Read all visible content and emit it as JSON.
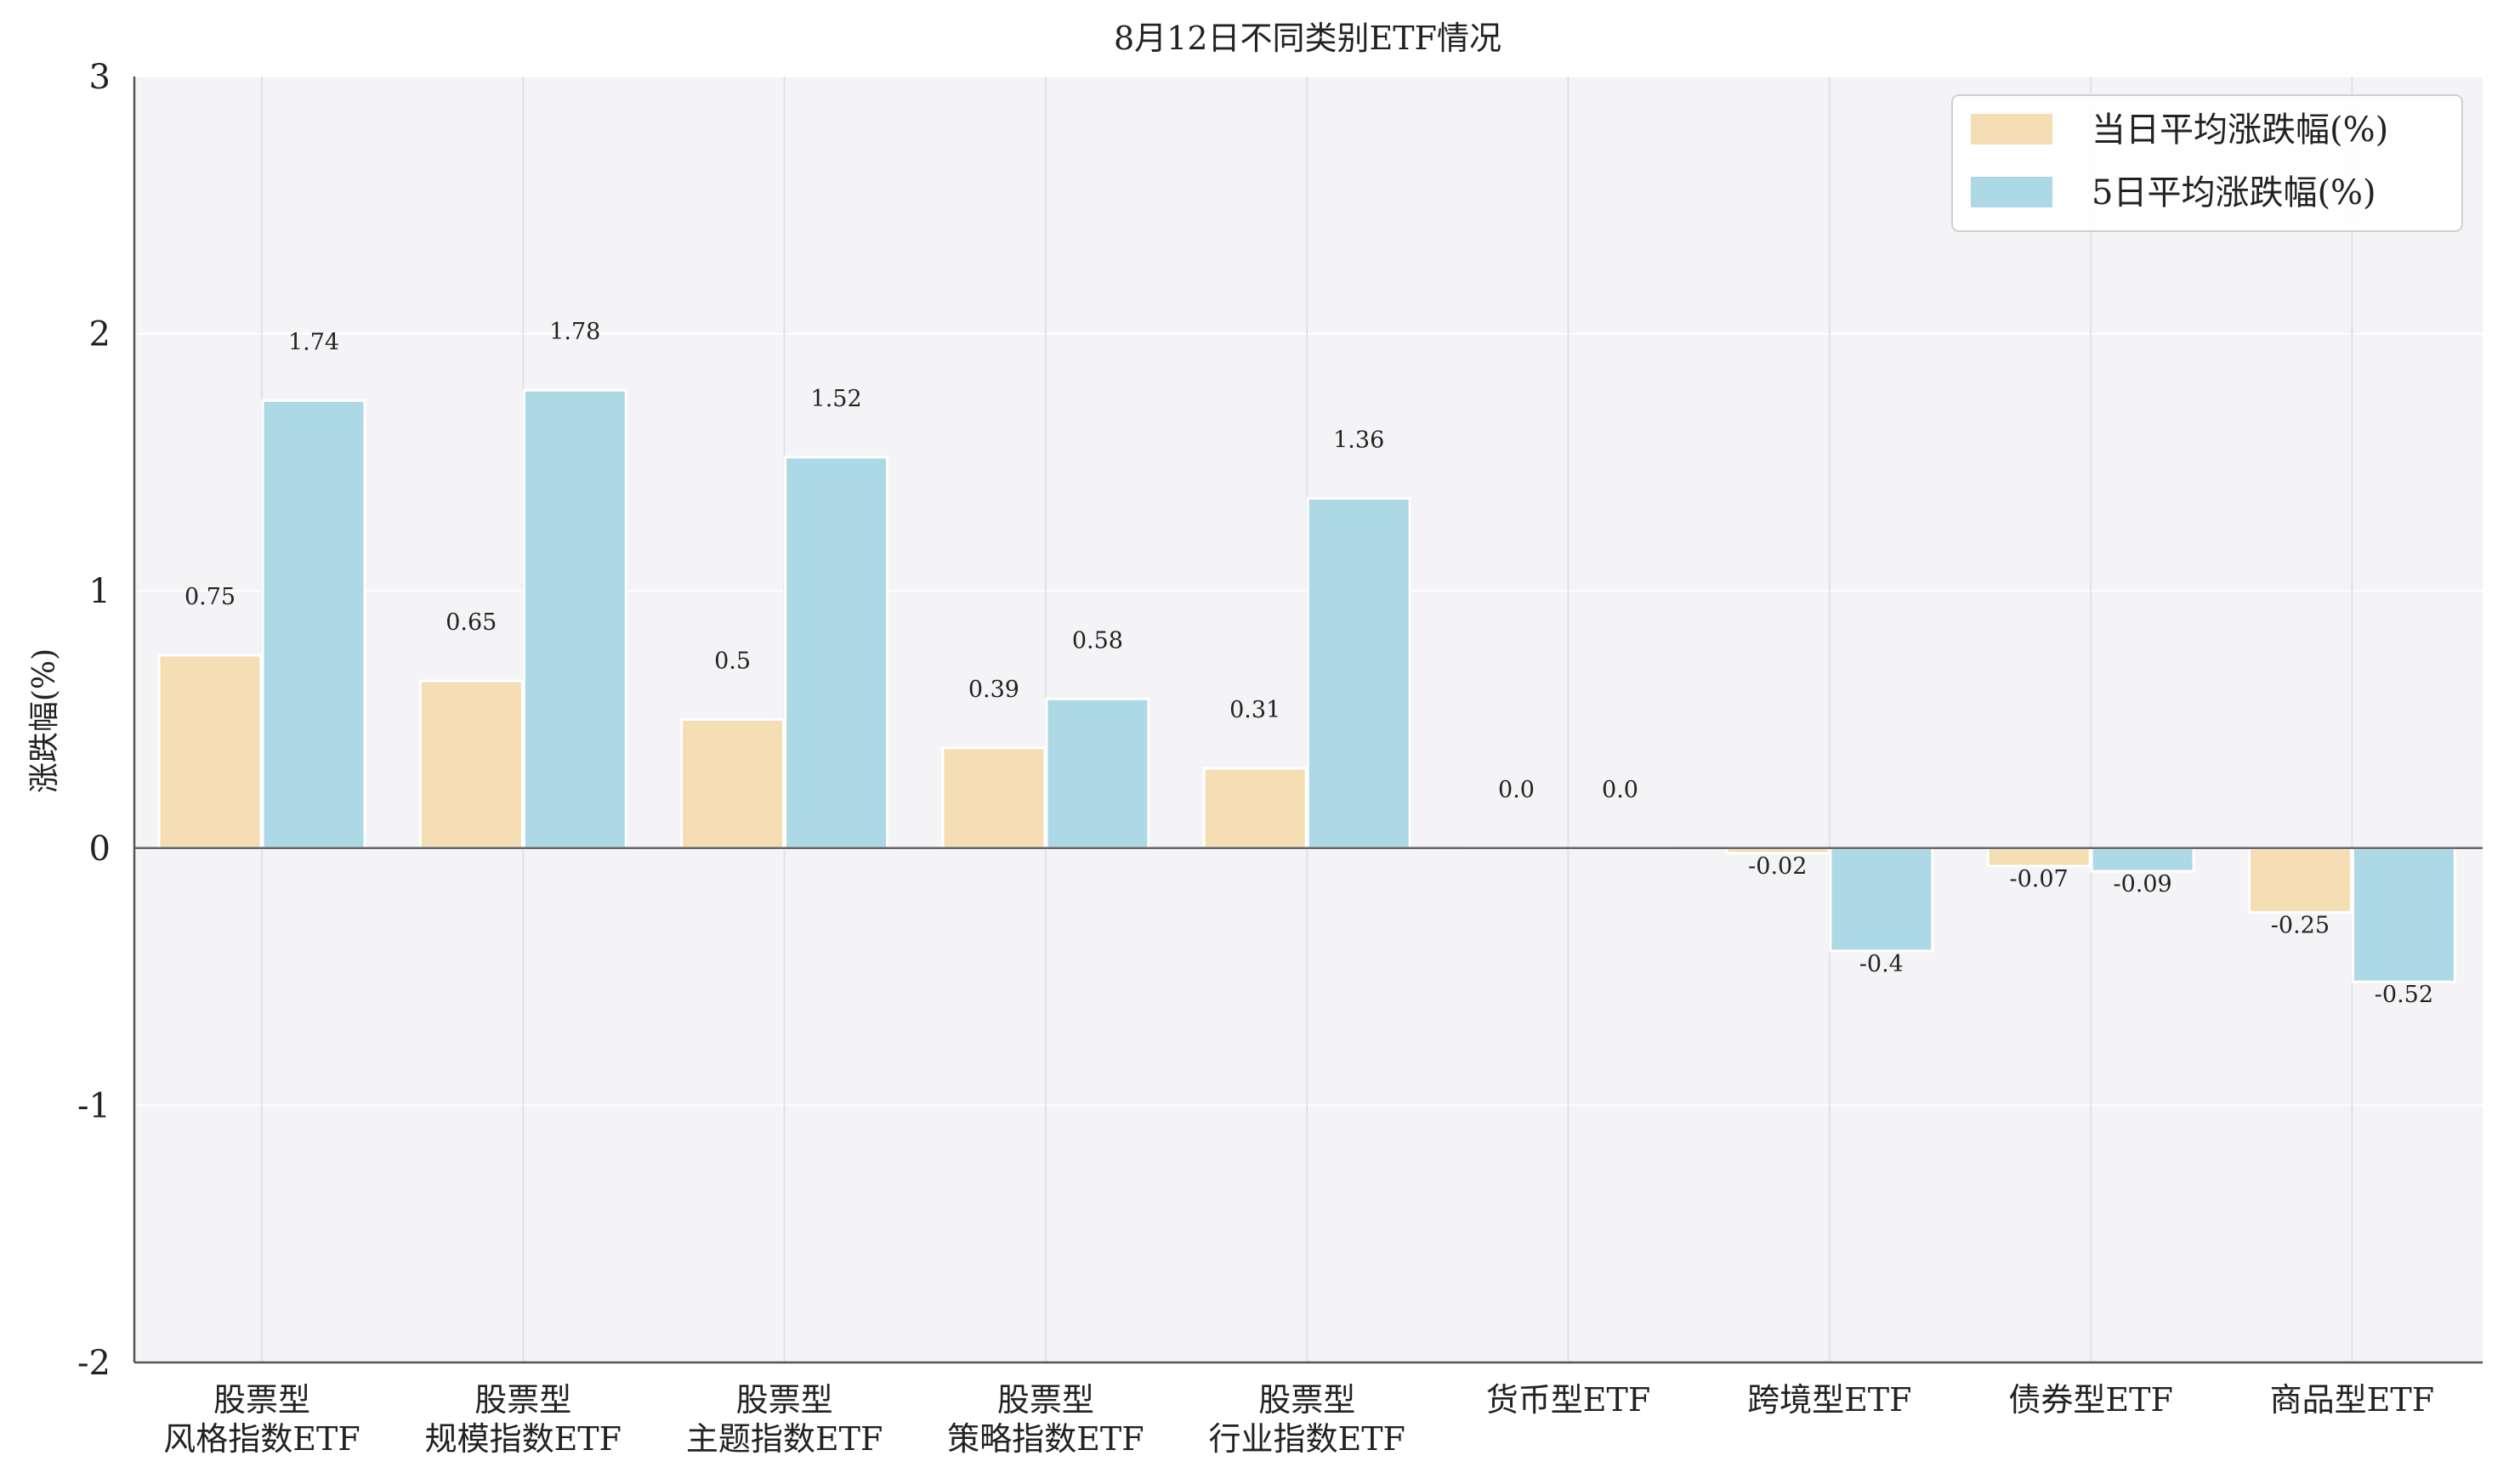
{
  "chart_data": {
    "type": "bar",
    "title": "8月12日不同类别ETF情况",
    "xlabel": "",
    "ylabel": "涨跌幅(%)",
    "ylim": [
      -2,
      3
    ],
    "yticks": [
      "-2",
      "-1",
      "0",
      "1",
      "2",
      "3"
    ],
    "grid": true,
    "legend_position": "top-right",
    "categories": [
      [
        "股票型",
        "风格指数ETF"
      ],
      [
        "股票型",
        "规模指数ETF"
      ],
      [
        "股票型",
        "主题指数ETF"
      ],
      [
        "股票型",
        "策略指数ETF"
      ],
      [
        "股票型",
        "行业指数ETF"
      ],
      [
        "货币型ETF"
      ],
      [
        "跨境型ETF"
      ],
      [
        "债券型ETF"
      ],
      [
        "商品型ETF"
      ]
    ],
    "series": [
      {
        "name": "当日平均涨跌幅(%)",
        "color": "#F5DEB3",
        "values": [
          0.75,
          0.65,
          0.5,
          0.39,
          0.31,
          0.0,
          -0.02,
          -0.07,
          -0.25
        ],
        "labels": [
          "0.75",
          "0.65",
          "0.5",
          "0.39",
          "0.31",
          "0.0",
          "-0.02",
          "-0.07",
          "-0.25"
        ]
      },
      {
        "name": "5日平均涨跌幅(%)",
        "color": "#ADD8E6",
        "values": [
          1.74,
          1.78,
          1.52,
          0.58,
          1.36,
          0.0,
          -0.4,
          -0.09,
          -0.52
        ],
        "labels": [
          "1.74",
          "1.78",
          "1.52",
          "0.58",
          "1.36",
          "0.0",
          "-0.4",
          "-0.09",
          "-0.52"
        ]
      }
    ]
  },
  "colors": {
    "plot_background": "#F4F3F6",
    "grid": "#E2E2E6",
    "axis": "#555555"
  }
}
